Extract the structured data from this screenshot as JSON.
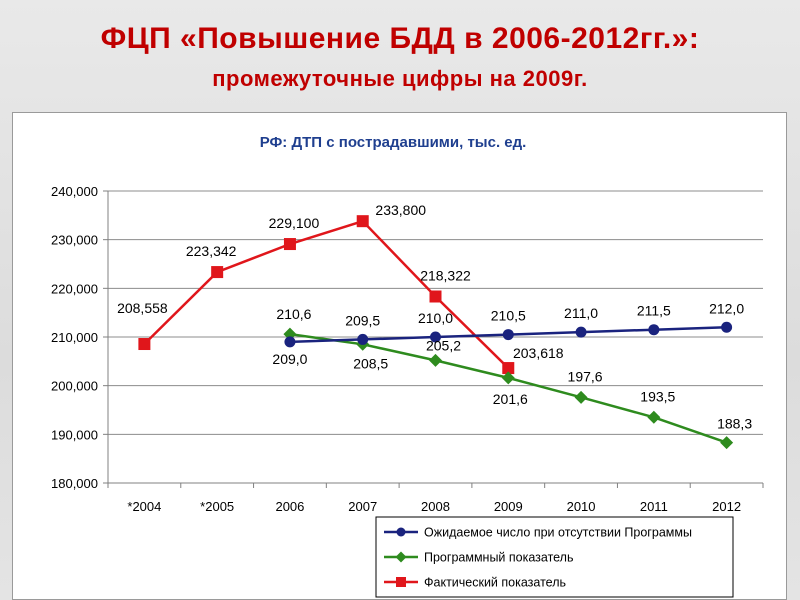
{
  "slide": {
    "title": "ФЦП «Повышение БДД в 2006-2012гг.»:",
    "subtitle": "промежуточные цифры на 2009г."
  },
  "chart_data": {
    "type": "line",
    "title": "РФ: ДТП с пострадавшими, тыс. ед.",
    "categories": [
      "*2004",
      "*2005",
      "2006",
      "2007",
      "2008",
      "2009",
      "2010",
      "2011",
      "2012"
    ],
    "ylim": [
      180000,
      240000
    ],
    "yticks": [
      180000,
      190000,
      200000,
      210000,
      220000,
      230000,
      240000
    ],
    "ytick_labels": [
      "180,000",
      "190,000",
      "200,000",
      "210,000",
      "220,000",
      "230,000",
      "240,000"
    ],
    "grid": true,
    "legend_position": "bottom-right",
    "series": [
      {
        "name": "Ожидаемое число при отсутствии Программы",
        "color": "#1a237e",
        "marker": "circle",
        "values": [
          null,
          null,
          209000,
          209500,
          210000,
          210500,
          211000,
          211500,
          212000
        ],
        "labels": [
          null,
          null,
          "209,0",
          "209,5",
          "210,0",
          "210,5",
          "211,0",
          "211,5",
          "212,0"
        ]
      },
      {
        "name": "Программный показатель",
        "color": "#2e8b1e",
        "marker": "diamond",
        "values": [
          null,
          null,
          210600,
          208500,
          205200,
          201600,
          197600,
          193500,
          188300
        ],
        "labels": [
          null,
          null,
          "210,6",
          "208,5",
          "205,2",
          "201,6",
          "197,6",
          "193,5",
          "188,3"
        ]
      },
      {
        "name": "Фактический показатель",
        "color": "#e0161b",
        "marker": "square",
        "values": [
          208558,
          223342,
          229100,
          233800,
          218322,
          203618,
          null,
          null,
          null
        ],
        "labels": [
          "208,558",
          "223,342",
          "229,100",
          "233,800",
          "218,322",
          "203,618",
          null,
          null,
          null
        ]
      }
    ]
  }
}
